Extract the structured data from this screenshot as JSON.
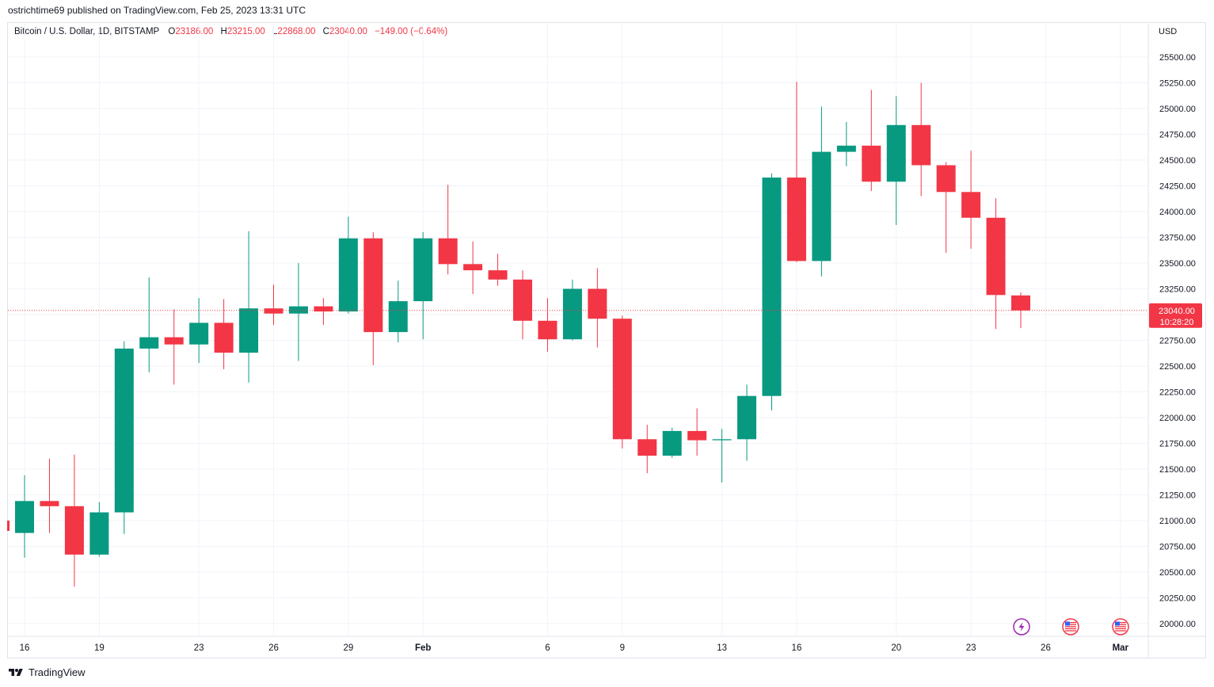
{
  "publisher_line": "ostrichtime69 published on TradingView.com, Feb 25, 2023 13:31 UTC",
  "header": {
    "symbol": "Bitcoin / U.S. Dollar, 1D, BITSTAMP",
    "o_label": "O",
    "o_value": "23186.00",
    "h_label": "H",
    "h_value": "23215.00",
    "l_label": "L",
    "l_value": "22868.00",
    "c_label": "C",
    "c_value": "23040.00",
    "change": "−149.00 (−0.64%)"
  },
  "currency": "USD",
  "current_price": {
    "price": "23040.00",
    "countdown": "10:28:20"
  },
  "footer": {
    "brand": "TradingView"
  },
  "colors": {
    "up": "#089981",
    "down": "#f23645",
    "grid": "#f0f3fa",
    "text": "#131722"
  },
  "event_icons": [
    "lightning-icon",
    "us-flag-icon",
    "us-flag-icon"
  ],
  "chart_data": {
    "type": "candlestick",
    "title": "Bitcoin / U.S. Dollar, 1D, BITSTAMP",
    "ylim": [
      19850,
      25780
    ],
    "y_ticks": [
      "20000.00",
      "20250.00",
      "20500.00",
      "20750.00",
      "21000.00",
      "21250.00",
      "21500.00",
      "21750.00",
      "22000.00",
      "22250.00",
      "22500.00",
      "22750.00",
      "23000.00",
      "23250.00",
      "23500.00",
      "23750.00",
      "24000.00",
      "24250.00",
      "24500.00",
      "24750.00",
      "25000.00",
      "25250.00",
      "25500.00"
    ],
    "x_ticks": [
      {
        "label": "16",
        "day": "2023-01-16"
      },
      {
        "label": "19",
        "day": "2023-01-19"
      },
      {
        "label": "23",
        "day": "2023-01-23"
      },
      {
        "label": "26",
        "day": "2023-01-26"
      },
      {
        "label": "29",
        "day": "2023-01-29"
      },
      {
        "label": "Feb",
        "day": "2023-02-01"
      },
      {
        "label": "6",
        "day": "2023-02-06"
      },
      {
        "label": "9",
        "day": "2023-02-09"
      },
      {
        "label": "13",
        "day": "2023-02-13"
      },
      {
        "label": "16",
        "day": "2023-02-16"
      },
      {
        "label": "20",
        "day": "2023-02-20"
      },
      {
        "label": "23",
        "day": "2023-02-23"
      },
      {
        "label": "26",
        "day": "2023-02-26"
      },
      {
        "label": "Mar",
        "day": "2023-03-01"
      }
    ],
    "grid": true,
    "candles": [
      {
        "date": "2023-01-16",
        "open": 20880,
        "high": 21440,
        "low": 20640,
        "close": 21190
      },
      {
        "date": "2023-01-17",
        "open": 21190,
        "high": 21600,
        "low": 20880,
        "close": 21140
      },
      {
        "date": "2023-01-18",
        "open": 21140,
        "high": 21640,
        "low": 20360,
        "close": 20670
      },
      {
        "date": "2023-01-19",
        "open": 20670,
        "high": 21180,
        "low": 20650,
        "close": 21080
      },
      {
        "date": "2023-01-20",
        "open": 21080,
        "high": 22740,
        "low": 20870,
        "close": 22670
      },
      {
        "date": "2023-01-21",
        "open": 22670,
        "high": 23360,
        "low": 22440,
        "close": 22780
      },
      {
        "date": "2023-01-22",
        "open": 22780,
        "high": 23050,
        "low": 22320,
        "close": 22710
      },
      {
        "date": "2023-01-23",
        "open": 22710,
        "high": 23160,
        "low": 22530,
        "close": 22920
      },
      {
        "date": "2023-01-24",
        "open": 22920,
        "high": 23150,
        "low": 22470,
        "close": 22630
      },
      {
        "date": "2023-01-25",
        "open": 22630,
        "high": 23810,
        "low": 22340,
        "close": 23060
      },
      {
        "date": "2023-01-26",
        "open": 23060,
        "high": 23290,
        "low": 22900,
        "close": 23010
      },
      {
        "date": "2023-01-27",
        "open": 23010,
        "high": 23500,
        "low": 22550,
        "close": 23080
      },
      {
        "date": "2023-01-28",
        "open": 23080,
        "high": 23160,
        "low": 22900,
        "close": 23030
      },
      {
        "date": "2023-01-29",
        "open": 23030,
        "high": 23950,
        "low": 23010,
        "close": 23740
      },
      {
        "date": "2023-01-30",
        "open": 23740,
        "high": 23800,
        "low": 22510,
        "close": 22830
      },
      {
        "date": "2023-01-31",
        "open": 22830,
        "high": 23330,
        "low": 22730,
        "close": 23130
      },
      {
        "date": "2023-02-01",
        "open": 23130,
        "high": 23800,
        "low": 22760,
        "close": 23740
      },
      {
        "date": "2023-02-02",
        "open": 23740,
        "high": 24260,
        "low": 23390,
        "close": 23490
      },
      {
        "date": "2023-02-03",
        "open": 23490,
        "high": 23710,
        "low": 23200,
        "close": 23430
      },
      {
        "date": "2023-02-04",
        "open": 23430,
        "high": 23590,
        "low": 23280,
        "close": 23340
      },
      {
        "date": "2023-02-05",
        "open": 23340,
        "high": 23430,
        "low": 22760,
        "close": 22940
      },
      {
        "date": "2023-02-06",
        "open": 22940,
        "high": 23160,
        "low": 22640,
        "close": 22760
      },
      {
        "date": "2023-02-07",
        "open": 22760,
        "high": 23340,
        "low": 22750,
        "close": 23250
      },
      {
        "date": "2023-02-08",
        "open": 23250,
        "high": 23450,
        "low": 22680,
        "close": 22960
      },
      {
        "date": "2023-02-09",
        "open": 22960,
        "high": 22990,
        "low": 21700,
        "close": 21790
      },
      {
        "date": "2023-02-10",
        "open": 21790,
        "high": 21930,
        "low": 21460,
        "close": 21630
      },
      {
        "date": "2023-02-11",
        "open": 21630,
        "high": 21900,
        "low": 21610,
        "close": 21870
      },
      {
        "date": "2023-02-12",
        "open": 21870,
        "high": 22090,
        "low": 21630,
        "close": 21780
      },
      {
        "date": "2023-02-13",
        "open": 21780,
        "high": 21890,
        "low": 21370,
        "close": 21790
      },
      {
        "date": "2023-02-14",
        "open": 21790,
        "high": 22320,
        "low": 21580,
        "close": 22210
      },
      {
        "date": "2023-02-15",
        "open": 22210,
        "high": 24370,
        "low": 22070,
        "close": 24330
      },
      {
        "date": "2023-02-16",
        "open": 24330,
        "high": 25260,
        "low": 23510,
        "close": 23520
      },
      {
        "date": "2023-02-17",
        "open": 23520,
        "high": 25020,
        "low": 23370,
        "close": 24580
      },
      {
        "date": "2023-02-18",
        "open": 24580,
        "high": 24870,
        "low": 24440,
        "close": 24640
      },
      {
        "date": "2023-02-19",
        "open": 24640,
        "high": 25180,
        "low": 24200,
        "close": 24290
      },
      {
        "date": "2023-02-20",
        "open": 24290,
        "high": 25120,
        "low": 23870,
        "close": 24840
      },
      {
        "date": "2023-02-21",
        "open": 24840,
        "high": 25250,
        "low": 24150,
        "close": 24450
      },
      {
        "date": "2023-02-22",
        "open": 24450,
        "high": 24480,
        "low": 23600,
        "close": 24190
      },
      {
        "date": "2023-02-23",
        "open": 24190,
        "high": 24590,
        "low": 23640,
        "close": 23940
      },
      {
        "date": "2023-02-24",
        "open": 23940,
        "high": 24130,
        "low": 22860,
        "close": 23190
      },
      {
        "date": "2023-02-25",
        "open": 23186,
        "high": 23215,
        "low": 22868,
        "close": 23040
      }
    ]
  }
}
